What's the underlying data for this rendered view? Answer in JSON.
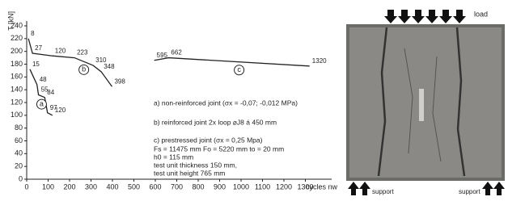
{
  "chart_data": {
    "type": "line",
    "y_label": "T [kN]",
    "x_label": "cycles nw",
    "xlim": [
      0,
      1400
    ],
    "xticks": [
      0,
      100,
      200,
      300,
      400,
      500,
      600,
      700,
      800,
      900,
      1000,
      1100,
      1200,
      1300
    ],
    "ylim": [
      0,
      240
    ],
    "yticks": [
      0,
      20,
      40,
      60,
      80,
      100,
      120,
      140,
      160,
      180,
      200,
      220,
      240
    ],
    "series": [
      {
        "name": "a",
        "color": "#222222",
        "x": [
          15,
          48,
          55,
          84,
          97,
          120
        ],
        "values": [
          172,
          148,
          132,
          128,
          104,
          100
        ]
      },
      {
        "name": "b",
        "color": "#222222",
        "x": [
          8,
          27,
          120,
          223,
          310,
          348,
          398
        ],
        "values": [
          220,
          197,
          193,
          190,
          178,
          168,
          145
        ]
      },
      {
        "name": "c",
        "color": "#222222",
        "x": [
          595,
          662,
          1320
        ],
        "values": [
          186,
          190,
          177
        ]
      }
    ],
    "notes": [
      "a) non-reinforced joint (σx = -0,07; -0,012 MPa)",
      "b) reinforced joint 2x loop ⌀J8 á 450 mm",
      "c) prestressed joint (σx = 0,25 Mpa)",
      "Fs = 11475 mm   Fo = 5220 mm  to = 20 mm",
      "h0 = 115 mm",
      "test unit thickness 150 mm,",
      "test unit height 765 mm"
    ]
  },
  "photo": {
    "load_label": "load",
    "support_left": "support",
    "support_right": "support"
  }
}
